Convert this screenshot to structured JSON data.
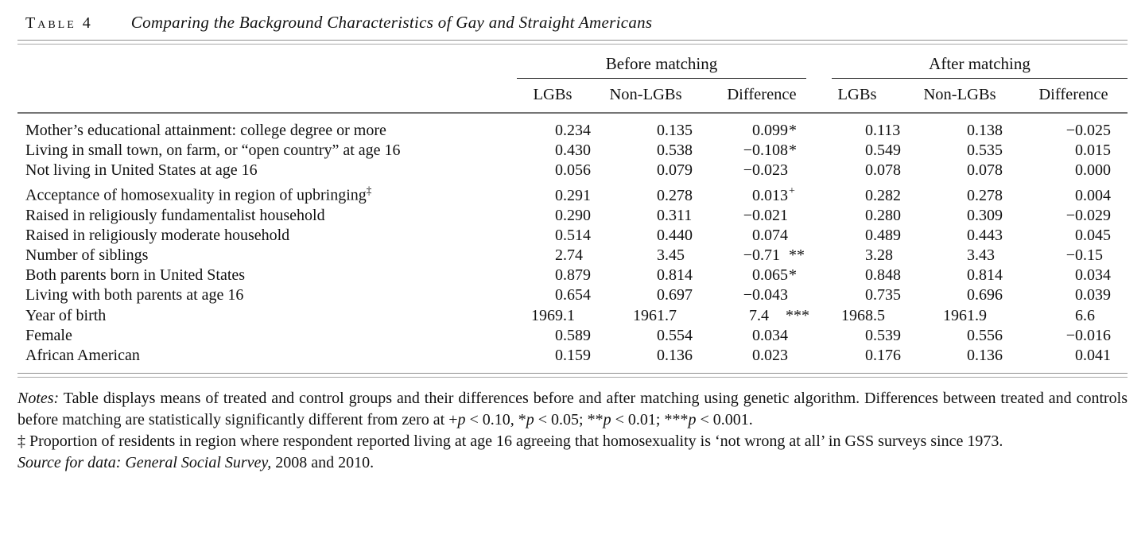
{
  "title": {
    "label": "Table 4",
    "caption": "Comparing the Background Characteristics of Gay and Straight Americans"
  },
  "table": {
    "group_headers": [
      "Before matching",
      "After matching"
    ],
    "column_headers": [
      "LGBs",
      "Non-LGBs",
      "Difference",
      "LGBs",
      "Non-LGBs",
      "Difference"
    ],
    "rows": [
      {
        "label": "Mother’s educational attainment: college degree or more",
        "sup": "",
        "cells": [
          "0.234",
          "0.135",
          "0.099*",
          "0.113",
          "0.138",
          "−0.025"
        ]
      },
      {
        "label": "Living in small town, on farm, or “open country” at age 16",
        "sup": "",
        "cells": [
          "0.430",
          "0.538",
          "−0.108*",
          "0.549",
          "0.535",
          "0.015"
        ]
      },
      {
        "label": "Not living in United States at age 16",
        "sup": "",
        "cells": [
          "0.056",
          "0.079",
          "−0.023",
          "0.078",
          "0.078",
          "0.000"
        ]
      },
      {
        "label": "Acceptance of homosexuality in region of upbringing",
        "sup": "‡",
        "cells": [
          "0.291",
          "0.278",
          "0.013+",
          "0.282",
          "0.278",
          "0.004"
        ]
      },
      {
        "label": "Raised in religiously fundamentalist household",
        "sup": "",
        "cells": [
          "0.290",
          "0.311",
          "−0.021",
          "0.280",
          "0.309",
          "−0.029"
        ]
      },
      {
        "label": "Raised in religiously moderate household",
        "sup": "",
        "cells": [
          "0.514",
          "0.440",
          "0.074",
          "0.489",
          "0.443",
          "0.045"
        ]
      },
      {
        "label": "Number of siblings",
        "sup": "",
        "cells": [
          "2.74",
          "3.45",
          "−0.71**",
          "3.28",
          "3.43",
          "−0.15"
        ]
      },
      {
        "label": "Both parents born in United States",
        "sup": "",
        "cells": [
          "0.879",
          "0.814",
          "0.065*",
          "0.848",
          "0.814",
          "0.034"
        ]
      },
      {
        "label": "Living with both parents at age 16",
        "sup": "",
        "cells": [
          "0.654",
          "0.697",
          "−0.043",
          "0.735",
          "0.696",
          "0.039"
        ]
      },
      {
        "label": "Year of birth",
        "sup": "",
        "cells": [
          "1969.1",
          "1961.7",
          "7.4***",
          "1968.5",
          "1961.9",
          "6.6"
        ]
      },
      {
        "label": "Female",
        "sup": "",
        "cells": [
          "0.589",
          "0.554",
          "0.034",
          "0.539",
          "0.556",
          "−0.016"
        ]
      },
      {
        "label": "African American",
        "sup": "",
        "cells": [
          "0.159",
          "0.136",
          "0.023",
          "0.176",
          "0.136",
          "0.041"
        ]
      }
    ]
  },
  "notes": {
    "label": "Notes:",
    "body": " Table displays means of treated and control groups and their differences before and after matching using genetic algorithm. Differences between treated and controls before matching are statistically significantly different from zero at ",
    "sig_levels": "+p < 0.10, *p < 0.05; **p < 0.01; ***p < 0.001.",
    "dagger_note": "‡ Proportion of residents in region where respondent reported living at age 16 agreeing that homosexuality is ‘not wrong at all’ in GSS surveys since 1973.",
    "source_italic": "Source for data: General Social Survey,",
    "source_roman": " 2008 and 2010."
  }
}
